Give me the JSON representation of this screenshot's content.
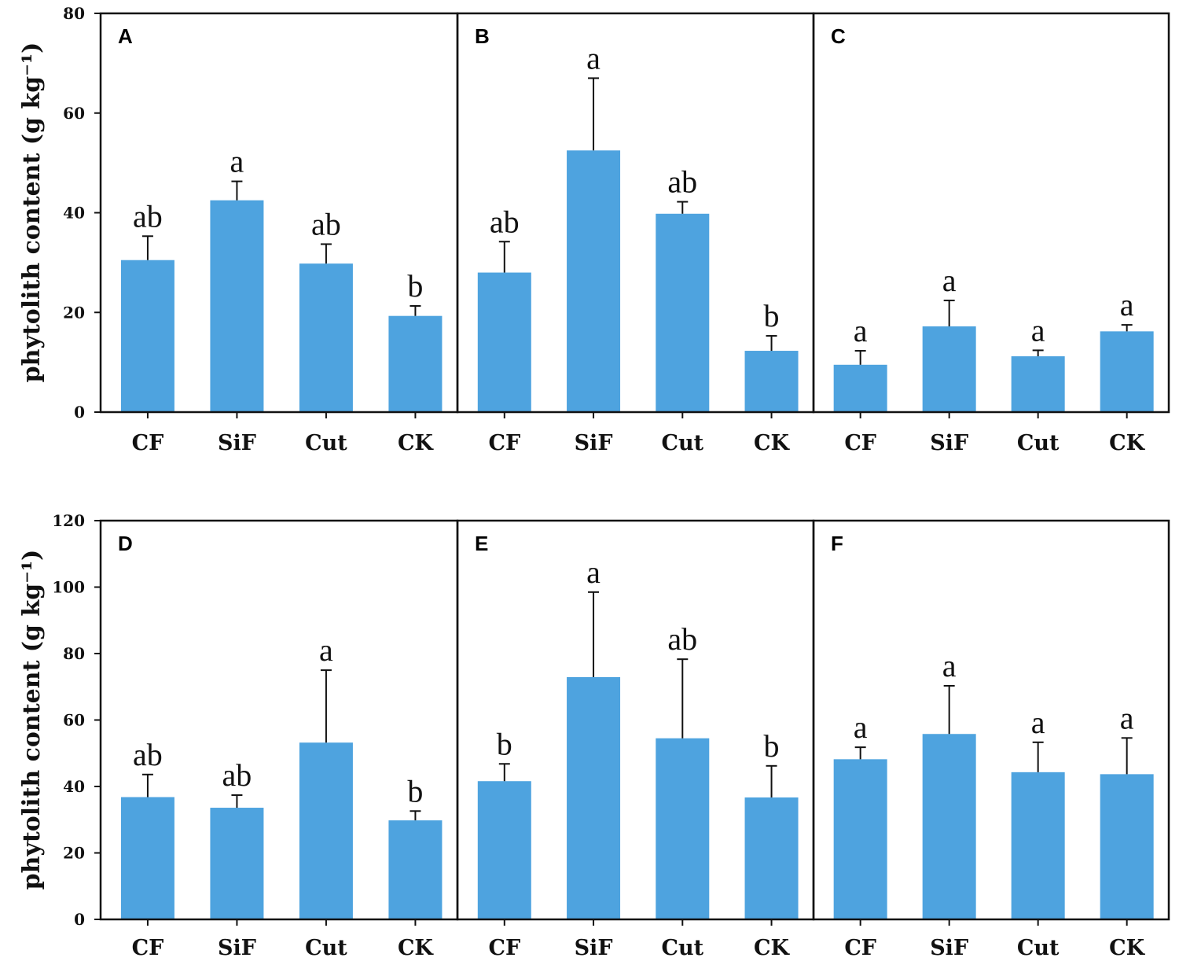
{
  "chart_data": [
    {
      "type": "bar",
      "row": "top",
      "ylabel": "phytolith content (g kg⁻¹)",
      "ylim": [
        0,
        80
      ],
      "yticks": [
        "0",
        "20",
        "40",
        "60",
        "80"
      ],
      "panels": [
        {
          "label": "A",
          "categories": [
            "CF",
            "SiF",
            "Cut",
            "CK"
          ],
          "values": [
            30.5,
            42.5,
            29.8,
            19.3
          ],
          "errors": [
            4.8,
            3.8,
            3.9,
            2.0
          ],
          "significance": [
            "ab",
            "a",
            "ab",
            "b"
          ]
        },
        {
          "label": "B",
          "categories": [
            "CF",
            "SiF",
            "Cut",
            "CK"
          ],
          "values": [
            28.0,
            52.5,
            39.8,
            12.3
          ],
          "errors": [
            6.2,
            14.5,
            2.4,
            3.0
          ],
          "significance": [
            "ab",
            "a",
            "ab",
            "b"
          ]
        },
        {
          "label": "C",
          "categories": [
            "CF",
            "SiF",
            "Cut",
            "CK"
          ],
          "values": [
            9.5,
            17.2,
            11.2,
            16.2
          ],
          "errors": [
            2.8,
            5.2,
            1.2,
            1.3
          ],
          "significance": [
            "a",
            "a",
            "a",
            "a"
          ]
        }
      ]
    },
    {
      "type": "bar",
      "row": "bottom",
      "ylabel": "phytolith content (g kg⁻¹)",
      "ylim": [
        0,
        120
      ],
      "yticks": [
        "0",
        "20",
        "40",
        "60",
        "80",
        "100",
        "120"
      ],
      "panels": [
        {
          "label": "D",
          "categories": [
            "CF",
            "SiF",
            "Cut",
            "CK"
          ],
          "values": [
            36.8,
            33.6,
            53.2,
            29.8
          ],
          "errors": [
            6.8,
            3.8,
            21.8,
            2.8
          ],
          "significance": [
            "ab",
            "ab",
            "a",
            "b"
          ]
        },
        {
          "label": "E",
          "categories": [
            "CF",
            "SiF",
            "Cut",
            "CK"
          ],
          "values": [
            41.6,
            72.9,
            54.5,
            36.7
          ],
          "errors": [
            5.2,
            25.6,
            23.8,
            9.5
          ],
          "significance": [
            "b",
            "a",
            "ab",
            "b"
          ]
        },
        {
          "label": "F",
          "categories": [
            "CF",
            "SiF",
            "Cut",
            "CK"
          ],
          "values": [
            48.2,
            55.8,
            44.3,
            43.7
          ],
          "errors": [
            3.6,
            14.5,
            9.0,
            10.9
          ],
          "significance": [
            "a",
            "a",
            "a",
            "a"
          ]
        }
      ]
    }
  ],
  "colors": {
    "bar": "#4ea3df",
    "axis": "#111111"
  }
}
